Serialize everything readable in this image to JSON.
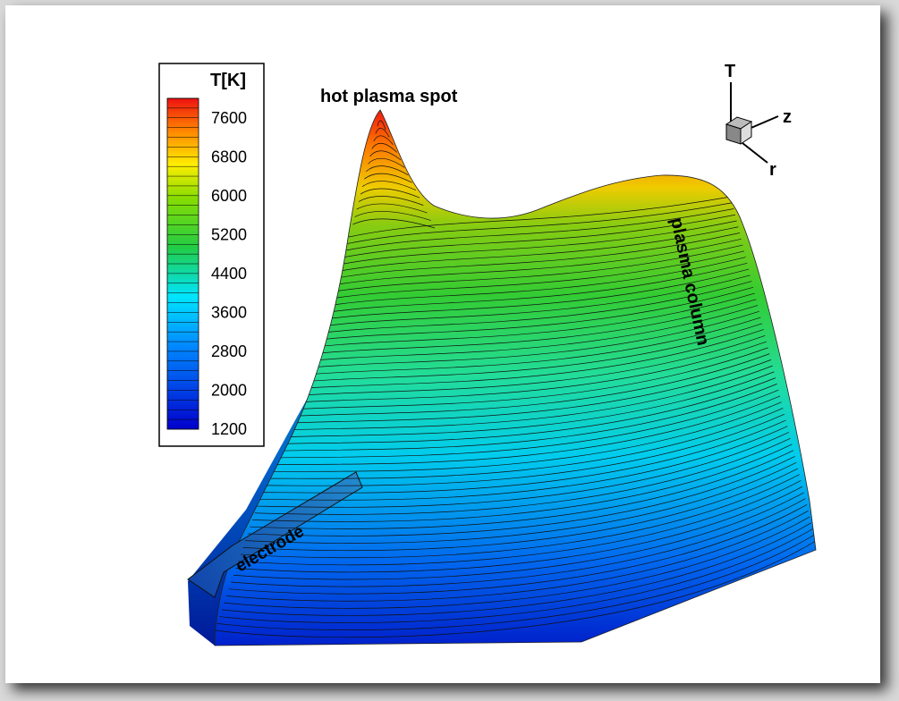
{
  "chart_data": {
    "type": "surface",
    "colorbar": {
      "title": "T[K]",
      "min": 1200,
      "max": 8000,
      "ticks": [
        "7600",
        "6800",
        "6000",
        "5200",
        "4400",
        "3600",
        "2800",
        "2000",
        "1200"
      ],
      "tick_values": [
        7600,
        6800,
        6000,
        5200,
        4400,
        3600,
        2800,
        2000,
        1200
      ],
      "placement": "top-left"
    },
    "axes": {
      "vertical": "T",
      "depth": "z",
      "horizontal": "r",
      "placement": "top-right"
    },
    "annotations": {
      "peak": "hot plasma spot",
      "ridge": "plasma column",
      "base": "electrode"
    },
    "peak_temperature": 8000,
    "base_temperature": 1200,
    "contour_lines": true,
    "colors": {
      "low": "#0000cc",
      "mid_low": "#00e5ff",
      "mid": "#33cc33",
      "mid_high": "#ffee00",
      "high": "#ee1111"
    }
  }
}
